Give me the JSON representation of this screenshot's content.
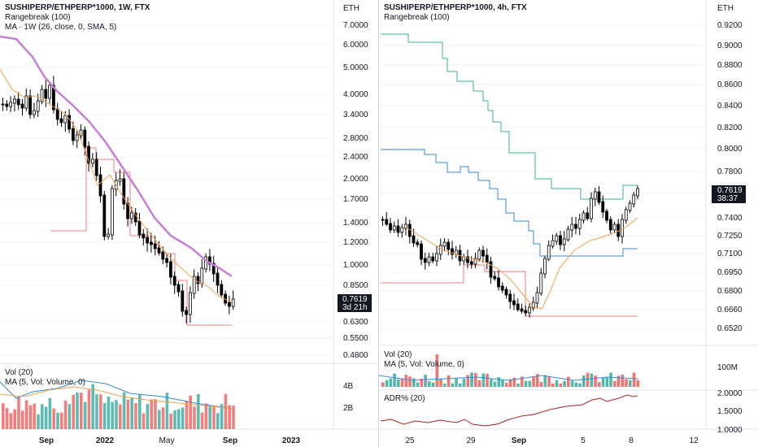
{
  "left": {
    "symbol": "SUSHIPERP/ETHPERP*1000, 1W, FTX",
    "line2": "Rangebreak (100)",
    "line3": "MA · 1W (26, close, 0, SMA, 5)",
    "vol_title": "Vol (20)",
    "vol_ma": "MA (5, Vol: Volume, 0)",
    "axis_unit": "ETH",
    "axis_ticks": [
      "7.0000",
      "6.0000",
      "5.0000",
      "4.0000",
      "3.4000",
      "2.8000",
      "2.4000",
      "2.0000",
      "1.7000",
      "1.4000",
      "1.2000",
      "1.0000",
      "0.8500",
      "0.6300",
      "0.5500",
      "0.4800"
    ],
    "vol_ticks": [
      "4B",
      "2B"
    ],
    "price_label": "0.7619",
    "price_countdown": "3d 21h",
    "x_ticks": [
      "Sep",
      "2022",
      "May",
      "Sep",
      "2023"
    ]
  },
  "right": {
    "symbol": "SUSHIPERP/ETHPERP*1000, 4h, FTX",
    "line2": "Rangebreak (100)",
    "vol_title": "Vol (20)",
    "vol_ma": "MA (5, Vol: Volume, 0)",
    "adr_title": "ADR% (20)",
    "axis_unit": "ETH",
    "axis_ticks": [
      "0.9200",
      "0.9000",
      "0.8800",
      "0.8600",
      "0.8400",
      "0.8200",
      "0.8000",
      "0.7800",
      "0.7600",
      "0.7400",
      "0.7250",
      "0.7100",
      "0.6950",
      "0.6800",
      "0.6660",
      "0.6520"
    ],
    "vol_ticks": [
      "100M"
    ],
    "adr_ticks": [
      "2.0000",
      "1.5000",
      "1.0000"
    ],
    "price_label": "0.7619",
    "price_countdown": "38:37",
    "x_ticks": [
      "25",
      "29",
      "Sep",
      "5",
      "8",
      "12"
    ]
  },
  "colors": {
    "up": "#26a69a",
    "down": "#ef5350",
    "candle": "#000000",
    "ma_purple": "#c77fd6",
    "ma_orange": "#f5a04a",
    "rb_red": "#f27c7c",
    "rb_blue": "#3b8ad4",
    "rb_teal": "#3bb38f",
    "adr": "#b22222",
    "grid": "#f0f3fa"
  }
}
